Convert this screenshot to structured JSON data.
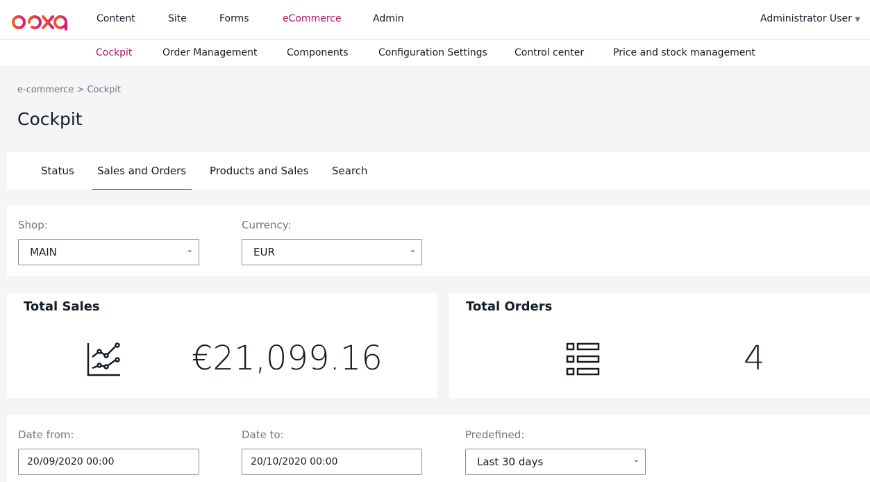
{
  "brand": {
    "logo": "ibexa",
    "colors": {
      "accent": "#ae1164",
      "logo_start": "#f15a22",
      "logo_end": "#d9187b"
    }
  },
  "top_nav": [
    "Content",
    "Site",
    "Forms",
    "eCommerce",
    "Admin"
  ],
  "user": "Administrator User",
  "sub_nav": [
    "Cockpit",
    "Order Management",
    "Components",
    "Configuration Settings",
    "Control center",
    "Price and stock management"
  ],
  "breadcrumb": "e-commerce > Cockpit",
  "page_title": "Cockpit",
  "tabs": [
    "Status",
    "Sales and Orders",
    "Products and Sales",
    "Search"
  ],
  "filters": {
    "shop_label": "Shop:",
    "shop_value": "MAIN",
    "currency_label": "Currency:",
    "currency_value": "EUR"
  },
  "total_sales": {
    "title": "Total Sales",
    "value": "€21,099.16",
    "icon": "chart-line-icon"
  },
  "total_orders": {
    "title": "Total Orders",
    "value": "4",
    "icon": "list-icon"
  },
  "dates": {
    "from_label": "Date from:",
    "from_value": "20/09/2020 00:00",
    "to_label": "Date to:",
    "to_value": "20/10/2020 00:00",
    "predefined_label": "Predefined:",
    "predefined_value": "Last 30 days"
  }
}
